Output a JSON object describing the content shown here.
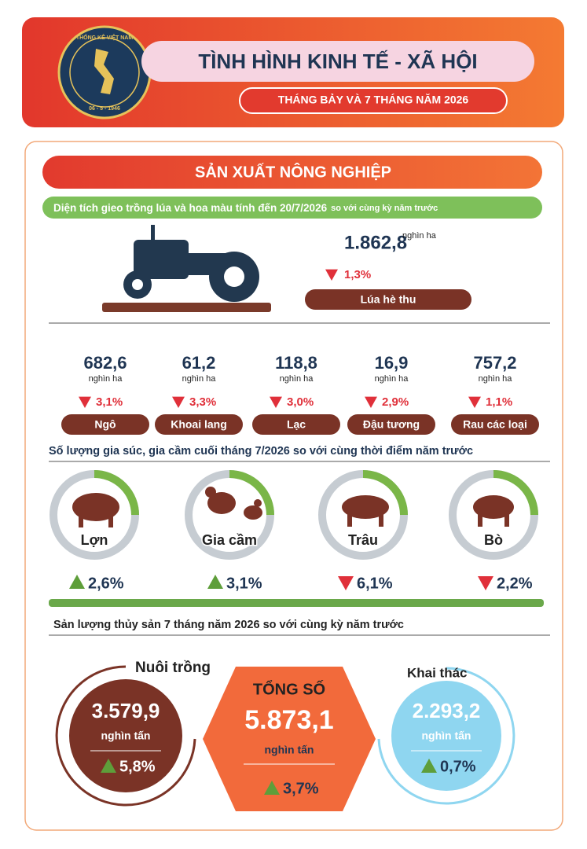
{
  "header": {
    "logo_text": "THỐNG KÊ VIỆT NAM",
    "logo_date": "06 - 5 - 1946",
    "title": "TÌNH HÌNH KINH TẾ - XÃ HỘI",
    "subtitle": "THÁNG BẢY VÀ 7 THÁNG NĂM 2026"
  },
  "section": {
    "title": "SẢN XUẤT NÔNG NGHIỆP"
  },
  "crops": {
    "heading": "Diện tích gieo trồng lúa và hoa màu tính đến 20/7/2026",
    "heading_suffix": "so với cùng kỳ năm trước",
    "main": {
      "value": "1.862,8",
      "unit": "nghìn ha",
      "change": "1,3%",
      "direction": "down",
      "label": "Lúa hè thu"
    },
    "items": [
      {
        "value": "682,6",
        "unit": "nghìn ha",
        "change": "3,1%",
        "direction": "down",
        "label": "Ngô"
      },
      {
        "value": "61,2",
        "unit": "nghìn ha",
        "change": "3,3%",
        "direction": "down",
        "label": "Khoai lang"
      },
      {
        "value": "118,8",
        "unit": "nghìn ha",
        "change": "3,0%",
        "direction": "down",
        "label": "Lạc"
      },
      {
        "value": "16,9",
        "unit": "nghìn ha",
        "change": "2,9%",
        "direction": "down",
        "label": "Đậu tương"
      },
      {
        "value": "757,2",
        "unit": "nghìn ha",
        "change": "1,1%",
        "direction": "down",
        "label": "Rau các loại"
      }
    ]
  },
  "livestock": {
    "heading": "Số lượng gia súc, gia cầm cuối tháng 7/2026 so với cùng thời điểm năm trước",
    "items": [
      {
        "label": "Lợn",
        "change": "2,6%",
        "direction": "up"
      },
      {
        "label": "Gia cầm",
        "change": "3,1%",
        "direction": "up"
      },
      {
        "label": "Trâu",
        "change": "6,1%",
        "direction": "down"
      },
      {
        "label": "Bò",
        "change": "2,2%",
        "direction": "down"
      }
    ]
  },
  "fishery": {
    "heading": "Sản lượng thủy sản 7 tháng năm 2026 so với cùng kỳ năm trước",
    "farmed": {
      "label": "Nuôi trồng",
      "value": "3.579,9",
      "unit": "nghìn tấn",
      "change": "5,8%",
      "direction": "up"
    },
    "total": {
      "label": "TỔNG SỐ",
      "value": "5.873,1",
      "unit": "nghìn tấn",
      "change": "3,7%",
      "direction": "up"
    },
    "caught": {
      "label": "Khai thác",
      "value": "2.293,2",
      "unit": "nghìn tấn",
      "change": "0,7%",
      "direction": "up"
    }
  }
}
